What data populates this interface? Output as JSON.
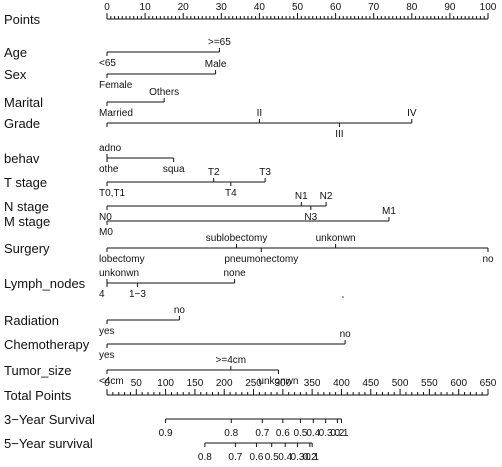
{
  "chart_data": {
    "type": "nomogram",
    "title": "",
    "scales": [
      {
        "name": "Points",
        "kind": "axis",
        "min": 0,
        "max": 100,
        "major": 10,
        "minor": 1,
        "labels": [
          0,
          10,
          20,
          30,
          40,
          50,
          60,
          70,
          80,
          90,
          100
        ]
      },
      {
        "name": "Age",
        "kind": "variable",
        "range": [
          0,
          29.5
        ],
        "points": [
          {
            "label": "<65",
            "value": 0,
            "side": "below"
          },
          {
            "label": ">=65",
            "value": 29.5,
            "side": "above"
          }
        ]
      },
      {
        "name": "Sex",
        "kind": "variable",
        "range": [
          0,
          28.5
        ],
        "points": [
          {
            "label": "Female",
            "value": 0,
            "side": "below"
          },
          {
            "label": "Male",
            "value": 28.5,
            "side": "above"
          }
        ]
      },
      {
        "name": "Marital",
        "kind": "variable",
        "range": [
          0,
          15
        ],
        "points": [
          {
            "label": "Married",
            "value": 0,
            "side": "below"
          },
          {
            "label": "Others",
            "value": 15,
            "side": "above"
          }
        ]
      },
      {
        "name": "Grade",
        "kind": "variable",
        "range": [
          0,
          80
        ],
        "points": [
          {
            "label": "",
            "value": 0,
            "side": "below"
          },
          {
            "label": "II",
            "value": 40,
            "side": "above"
          },
          {
            "label": "IV",
            "value": 80,
            "side": "above"
          },
          {
            "label": "III",
            "value": 61,
            "side": "below"
          }
        ]
      },
      {
        "name": "behav",
        "kind": "variable",
        "range": [
          0,
          17.5
        ],
        "points": [
          {
            "label": "adno",
            "value": 0,
            "side": "above"
          },
          {
            "label": "othe",
            "value": 0,
            "side": "below"
          },
          {
            "label": "squa",
            "value": 17.5,
            "side": "below"
          }
        ]
      },
      {
        "name": "T stage",
        "kind": "variable",
        "range": [
          0,
          41.5
        ],
        "points": [
          {
            "label": "T0,T1",
            "value": 0,
            "side": "below"
          },
          {
            "label": "T2",
            "value": 28,
            "side": "above"
          },
          {
            "label": "T3",
            "value": 41.5,
            "side": "above"
          },
          {
            "label": "T4",
            "value": 32.5,
            "side": "below"
          }
        ]
      },
      {
        "name": "N stage",
        "kind": "variable",
        "range": [
          0,
          57.5
        ],
        "points": [
          {
            "label": "N0",
            "value": 0,
            "side": "below"
          },
          {
            "label": "N1",
            "value": 51,
            "side": "above"
          },
          {
            "label": "N2",
            "value": 57.5,
            "side": "above"
          },
          {
            "label": "N3",
            "value": 53.5,
            "side": "below"
          }
        ]
      },
      {
        "name": "M stage",
        "kind": "variable",
        "range": [
          0,
          74
        ],
        "points": [
          {
            "label": "M0",
            "value": 0,
            "side": "below"
          },
          {
            "label": "M1",
            "value": 74,
            "side": "above"
          }
        ]
      },
      {
        "name": "Surgery",
        "kind": "variable",
        "range": [
          0,
          100
        ],
        "points": [
          {
            "label": "lobectomy",
            "value": 0,
            "side": "below"
          },
          {
            "label": "sublobectomy",
            "value": 34,
            "side": "above"
          },
          {
            "label": "unkonwn",
            "value": 60,
            "side": "above"
          },
          {
            "label": "pneumonectomy",
            "value": 40.5,
            "side": "below"
          },
          {
            "label": "no",
            "value": 100,
            "side": "below"
          }
        ]
      },
      {
        "name": "Lymph_nodes",
        "kind": "variable",
        "range": [
          0,
          33.5
        ],
        "points": [
          {
            "label": "unkonwn",
            "value": 0,
            "side": "above"
          },
          {
            "label": "none",
            "value": 33.5,
            "side": "above"
          },
          {
            "label": "4",
            "value": 0,
            "side": "below"
          },
          {
            "label": "1−3",
            "value": 8,
            "side": "below"
          }
        ]
      },
      {
        "name": "Radiation",
        "kind": "variable",
        "range": [
          0,
          19
        ],
        "points": [
          {
            "label": "yes",
            "value": 0,
            "side": "below"
          },
          {
            "label": "no",
            "value": 19,
            "side": "above"
          }
        ]
      },
      {
        "name": "Chemotherapy",
        "kind": "variable",
        "range": [
          0,
          62.5
        ],
        "points": [
          {
            "label": "yes",
            "value": 0,
            "side": "below"
          },
          {
            "label": "no",
            "value": 62.5,
            "side": "above"
          }
        ]
      },
      {
        "name": "Tumor_size",
        "kind": "variable",
        "range": [
          0,
          45
        ],
        "points": [
          {
            "label": "<4cm",
            "value": 0,
            "side": "below"
          },
          {
            "label": ">=4cm",
            "value": 32.5,
            "side": "above"
          },
          {
            "label": "unkonwn",
            "value": 45,
            "side": "below"
          }
        ]
      },
      {
        "name": "Total Points",
        "kind": "axis",
        "min": 0,
        "max": 650,
        "major": 50,
        "minor": 10,
        "labels": [
          0,
          50,
          100,
          150,
          200,
          250,
          300,
          350,
          400,
          450,
          500,
          550,
          600,
          650
        ]
      },
      {
        "name": "3−Year Survival",
        "kind": "probability",
        "range_points": [
          100,
          400
        ],
        "ticks": [
          {
            "label": "0.9",
            "points": 100
          },
          {
            "label": "0.8",
            "points": 212
          },
          {
            "label": "0.7",
            "points": 265
          },
          {
            "label": "0.6",
            "points": 300
          },
          {
            "label": "0.5",
            "points": 330
          },
          {
            "label": "0.4",
            "points": 352
          },
          {
            "label": "0.3",
            "points": 373
          },
          {
            "label": "0.2",
            "points": 393
          },
          {
            "label": "0.1",
            "points": 400
          }
        ]
      },
      {
        "name": "5−Year survival",
        "kind": "probability",
        "range_points": [
          167,
          350
        ],
        "ticks": [
          {
            "label": "0.8",
            "points": 167
          },
          {
            "label": "0.7",
            "points": 219
          },
          {
            "label": "0.6",
            "points": 255
          },
          {
            "label": "0.5",
            "points": 281
          },
          {
            "label": "0.4",
            "points": 304
          },
          {
            "label": "0.3",
            "points": 325
          },
          {
            "label": "0.2",
            "points": 346
          },
          {
            "label": "0.1",
            "points": 350
          }
        ]
      }
    ]
  }
}
